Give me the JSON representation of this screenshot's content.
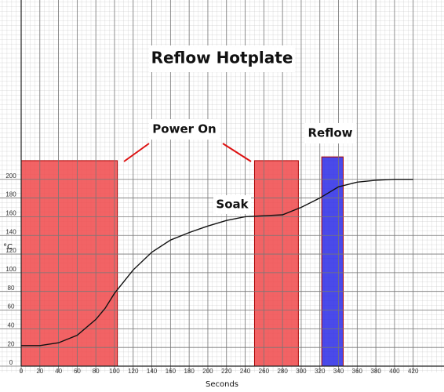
{
  "chart_data": {
    "type": "line",
    "title": "Reflow Hotplate",
    "x_label": "Seconds",
    "y_label": "°C",
    "annotations": [
      "Power On",
      "Reflow",
      "Soak"
    ],
    "x": [
      0,
      20,
      40,
      60,
      80,
      90,
      100,
      120,
      140,
      160,
      180,
      200,
      220,
      240,
      260,
      280,
      300,
      320,
      340,
      360,
      380,
      400,
      420
    ],
    "values": [
      22,
      22,
      25,
      33,
      50,
      62,
      78,
      103,
      122,
      135,
      143,
      150,
      156,
      160,
      161,
      162,
      170,
      180,
      192,
      197,
      199,
      200,
      200
    ],
    "color": "#111111",
    "regions": [
      {
        "start": 0,
        "end": 103,
        "top": 220,
        "color": "#f0484a"
      },
      {
        "start": 250,
        "end": 297,
        "top": 220,
        "color": "#f0484a"
      },
      {
        "start": 322,
        "end": 345,
        "top": 224,
        "color": "#2a2ae6"
      }
    ],
    "xlim": [
      0,
      453
    ],
    "ylim": [
      0,
      392
    ],
    "xticks": [
      0,
      20,
      40,
      60,
      80,
      100,
      120,
      140,
      160,
      180,
      200,
      220,
      240,
      260,
      280,
      300,
      320,
      340,
      360,
      380,
      400,
      420
    ],
    "yticks": [
      0,
      20,
      40,
      60,
      80,
      100,
      120,
      140,
      160,
      180,
      200
    ],
    "grid": true
  }
}
